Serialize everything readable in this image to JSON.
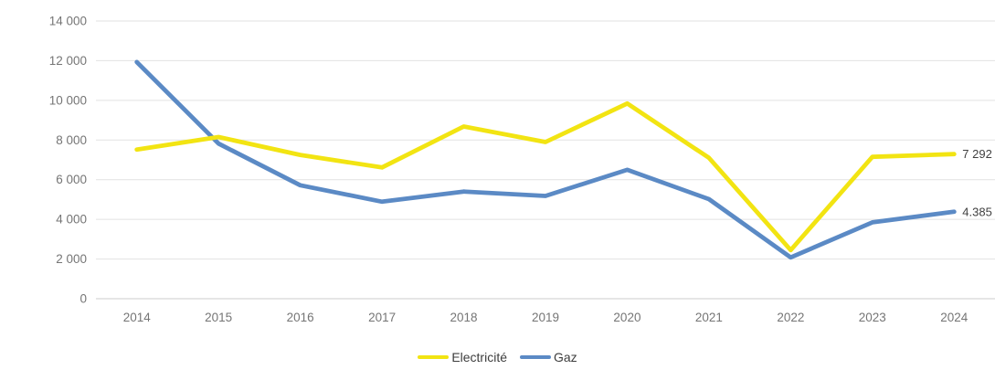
{
  "chart_data": {
    "type": "line",
    "title": "",
    "xlabel": "",
    "ylabel": "",
    "categories": [
      "2014",
      "2015",
      "2016",
      "2017",
      "2018",
      "2019",
      "2020",
      "2021",
      "2022",
      "2023",
      "2024"
    ],
    "series": [
      {
        "name": "Electricité",
        "color": "#F2E412",
        "values": [
          7520,
          8150,
          7250,
          6620,
          8680,
          7900,
          9840,
          7100,
          2450,
          7150,
          7292
        ],
        "end_label": "7 292"
      },
      {
        "name": "Gaz",
        "color": "#5B8AC5",
        "values": [
          11930,
          7820,
          5720,
          4890,
          5400,
          5180,
          6500,
          5020,
          2080,
          3850,
          4385
        ],
        "end_label": "4.385"
      }
    ],
    "ylim": [
      0,
      14000
    ],
    "yticks": [
      0,
      2000,
      4000,
      6000,
      8000,
      10000,
      12000,
      14000
    ],
    "ytick_labels": [
      "0",
      "2 000",
      "4 000",
      "6 000",
      "8 000",
      "10 000",
      "12 000",
      "14 000"
    ],
    "grid": true,
    "legend_position": "bottom"
  },
  "colors": {
    "axis_text": "#757575",
    "data_label": "#404040",
    "gridline": "#e2e2e2",
    "baseline": "#cccccc",
    "background": "#ffffff"
  }
}
